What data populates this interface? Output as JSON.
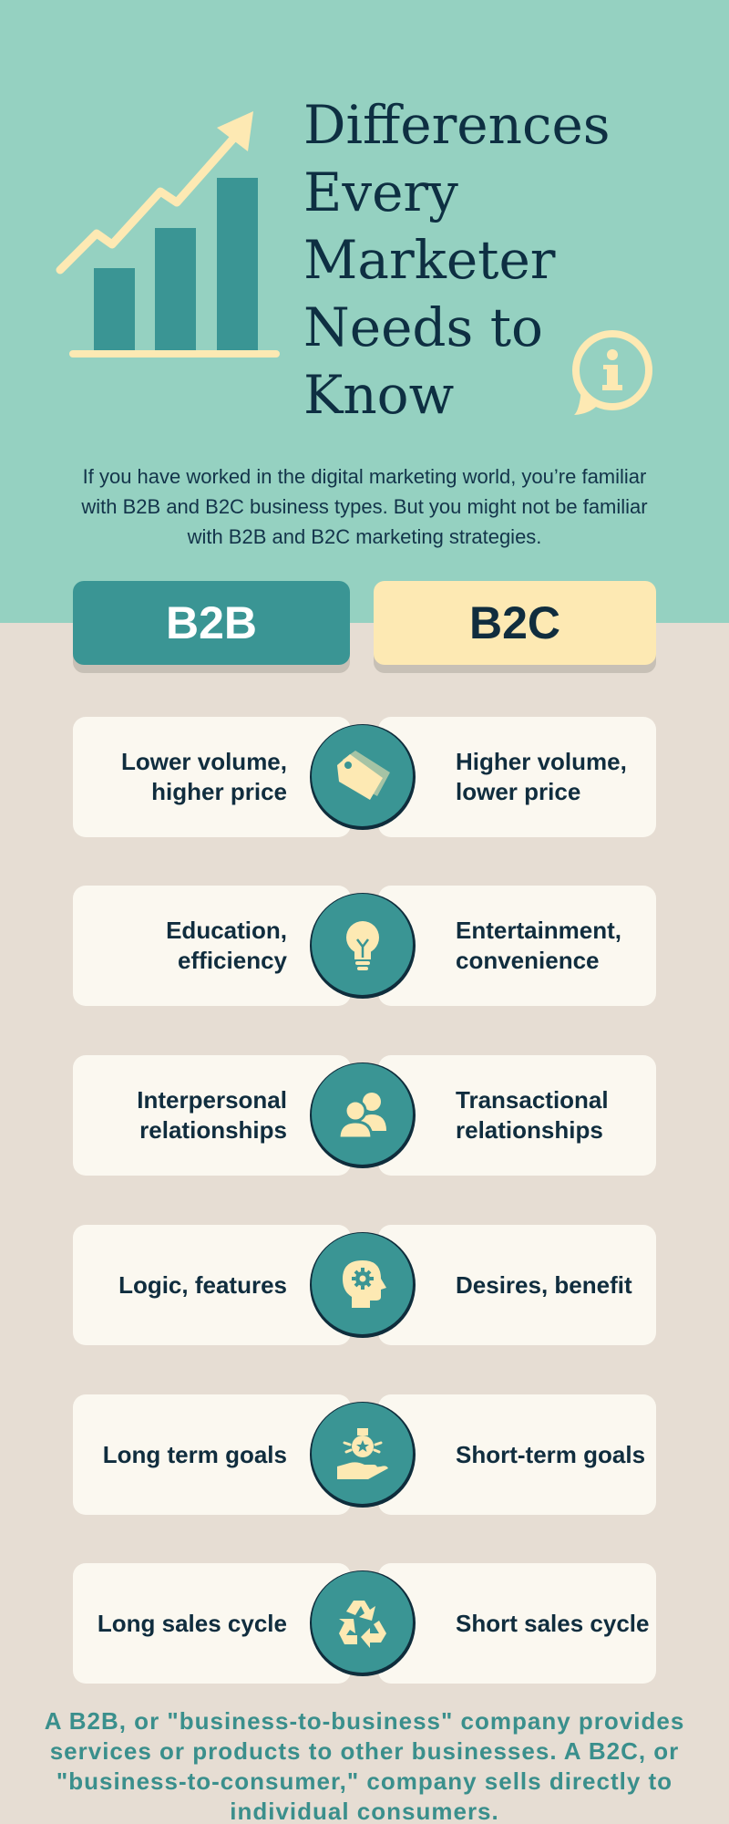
{
  "header": {
    "title": "Differences Every Marketer Needs to Know",
    "intro": "If you have worked in the digital marketing world, you’re familiar with B2B and B2C business types. But you might not be familiar with B2B and B2C marketing strategies."
  },
  "columns": {
    "left": "B2B",
    "right": "B2C"
  },
  "rows": [
    {
      "left": "Lower volume, higher price",
      "right": "Higher volume, lower price",
      "icon": "price-tag-icon"
    },
    {
      "left": "Education, efficiency",
      "right": "Entertainment, convenience",
      "icon": "lightbulb-icon"
    },
    {
      "left": "Interpersonal relationships",
      "right": "Transactional relationships",
      "icon": "people-icon"
    },
    {
      "left": "Logic, features",
      "right": "Desires, benefit",
      "icon": "head-gear-icon"
    },
    {
      "left": "Long term goals",
      "right": "Short-term goals",
      "icon": "hand-medal-icon"
    },
    {
      "left": "Long sales cycle",
      "right": "Short sales cycle",
      "icon": "recycle-icon"
    }
  ],
  "footer": "A B2B, or \"business-to-business\" company provides services or products to other businesses. A B2C, or \"business-to-consumer,\" company sells directly to individual consumers.",
  "colors": {
    "hero_bg": "#95d1c1",
    "body_bg": "#e6ddd3",
    "teal": "#3a9594",
    "cream": "#fde9b3",
    "navy": "#0f2d3c",
    "card": "#fbf8f0"
  }
}
